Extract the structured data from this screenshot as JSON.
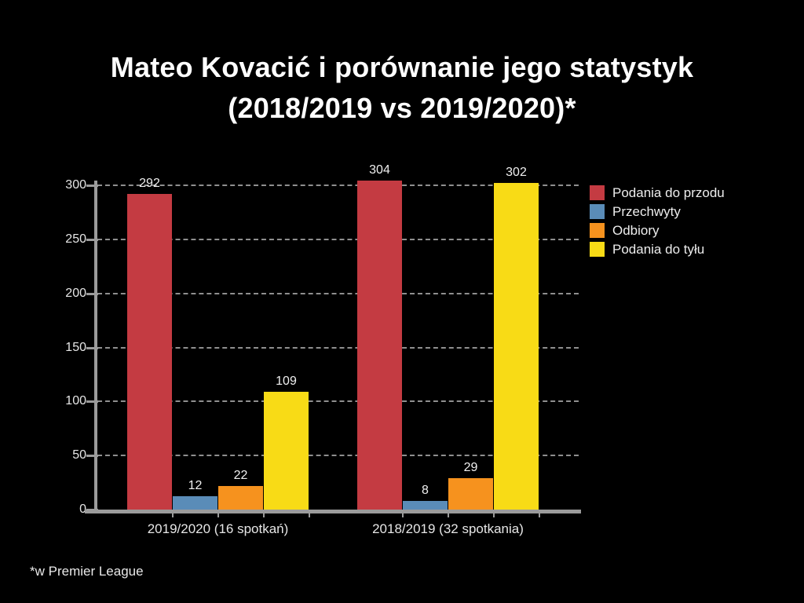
{
  "page": {
    "title_line1": "Mateo Kovacić i porównanie jego statystyk",
    "title_line2": "(2018/2019 vs 2019/2020)*",
    "footnote": "*w Premier League"
  },
  "chart_data": {
    "type": "bar",
    "title": "Mateo Kovacić i porównanie jego statystyk (2018/2019 vs 2019/2020)*",
    "footnote": "*w Premier League",
    "categories": [
      "2019/2020 (16 spotkań)",
      "2018/2019 (32 spotkania)"
    ],
    "series": [
      {
        "name": "Podania do przodu",
        "color": "#c43b42",
        "values": [
          292,
          304
        ]
      },
      {
        "name": "Przechwyty",
        "color": "#5a8cb8",
        "values": [
          12,
          8
        ]
      },
      {
        "name": "Odbiory",
        "color": "#f6921e",
        "values": [
          22,
          29
        ]
      },
      {
        "name": "Podania do tyłu",
        "color": "#f8db16",
        "values": [
          109,
          302
        ]
      }
    ],
    "ylim": [
      0,
      300
    ],
    "yticks": [
      0,
      50,
      100,
      150,
      200,
      250,
      300
    ],
    "grid": "horizontal-dashed",
    "value_labels": true,
    "legend_position": "top-right",
    "colors": {
      "background": "#000000",
      "axis": "#9b9b9b",
      "gridline": "#a9a9a9",
      "tick_text": "#e6e6e6",
      "value_text": "#f0f0f0",
      "title_text": "#ffffff"
    }
  }
}
